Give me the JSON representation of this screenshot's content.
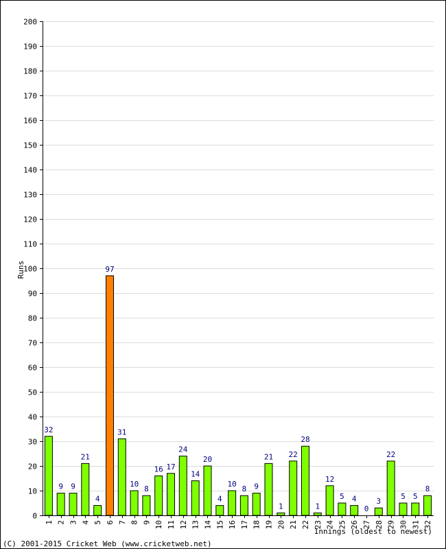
{
  "chart_data": {
    "type": "bar",
    "title": "",
    "xlabel": "Innings (oldest to newest)",
    "ylabel": "Runs",
    "ylim": [
      0,
      200
    ],
    "ytick_step": 10,
    "grid": true,
    "categories": [
      "1",
      "2",
      "3",
      "4",
      "5",
      "6",
      "7",
      "8",
      "9",
      "10",
      "11",
      "12",
      "13",
      "14",
      "15",
      "16",
      "17",
      "18",
      "19",
      "20",
      "21",
      "22",
      "23",
      "24",
      "25",
      "26",
      "27",
      "28",
      "29",
      "30",
      "31",
      "32"
    ],
    "values": [
      32,
      9,
      9,
      21,
      4,
      97,
      31,
      10,
      8,
      16,
      17,
      24,
      14,
      20,
      4,
      10,
      8,
      9,
      21,
      1,
      22,
      28,
      1,
      12,
      5,
      4,
      0,
      3,
      22,
      5,
      5,
      8
    ],
    "highlight_index": 5,
    "colors": {
      "bar": "#7fff00",
      "highlight": "#ff8000",
      "bar_outline": "#000000",
      "data_label": "#000080",
      "grid": "#dcdcdc",
      "axis": "#000000"
    }
  },
  "footer": {
    "copyright": "(C) 2001-2015 Cricket Web (www.cricketweb.net)"
  }
}
